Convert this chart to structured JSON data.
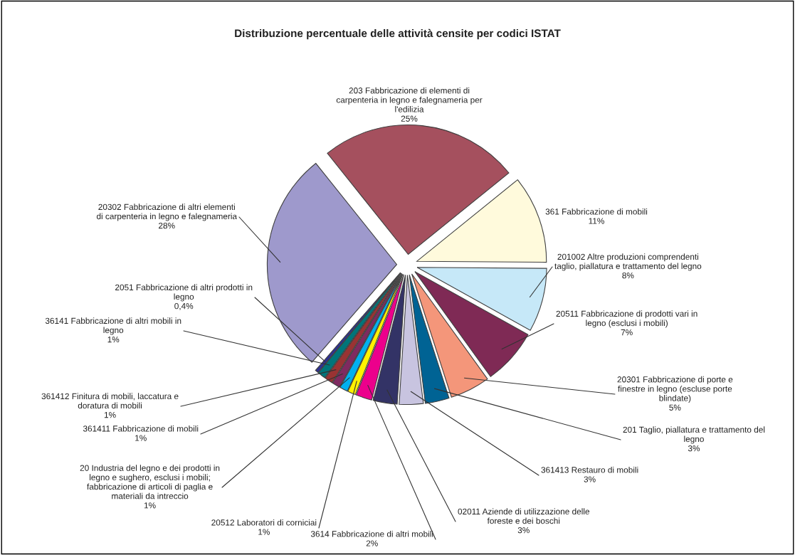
{
  "chart_data": {
    "type": "pie",
    "title": "Distribuzione percentuale delle attività censite per codici ISTAT",
    "categories": [
      "361 Fabbricazione di mobili",
      "201002 Altre produzioni comprendenti\ntaglio, piallatura e trattamento del legno",
      "20511 Fabbricazione di prodotti vari in\nlegno (esclusi i mobili)",
      "20301 Fabbricazione di porte e\nfinestre in legno (escluse porte\nblindate)",
      "201 Taglio, piallatura e trattamento del\nlegno",
      "361413 Restauro di mobili",
      "02011 Aziende di utilizzazione delle\nforeste e dei boschi",
      "3614 Fabbricazione di altri mobili",
      "20512 Laboratori di corniciai",
      "20 Industria del legno e dei prodotti in\nlegno e sughero, esclusi i mobili;\nfabbricazione di articoli di paglia e\nmateriali da intreccio",
      "361411 Fabbricazione di mobili",
      "361412 Finitura di mobili, laccatura e\ndoratura di mobili",
      "36141 Fabbricazione di altri mobili in\nlegno",
      "2051 Fabbricazione di altri prodotti in\nlegno",
      "20302 Fabbricazione di altri elementi\ndi carpenteria in legno e falegnameria",
      "203 Fabbricazione di elementi di\ncarpenteria in legno e falegnameria per\nl'edilizia"
    ],
    "values": [
      11,
      8,
      7,
      5,
      3,
      3,
      3,
      2,
      1,
      1,
      1,
      1,
      1,
      0.4,
      28,
      25
    ],
    "value_labels": [
      "11%",
      "8%",
      "7%",
      "5%",
      "3%",
      "3%",
      "3%",
      "2%",
      "1%",
      "1%",
      "1%",
      "1%",
      "1%",
      "0,4%",
      "28%",
      "25%"
    ],
    "colors": [
      "#fffadc",
      "#c6e8f8",
      "#7f2a55",
      "#f4967a",
      "#006394",
      "#c8c4e0",
      "#333366",
      "#ec008c",
      "#fff200",
      "#00b0f0",
      "#7f2a60",
      "#993333",
      "#00757a",
      "#2e3192",
      "#9e99cc",
      "#a5505e"
    ]
  }
}
